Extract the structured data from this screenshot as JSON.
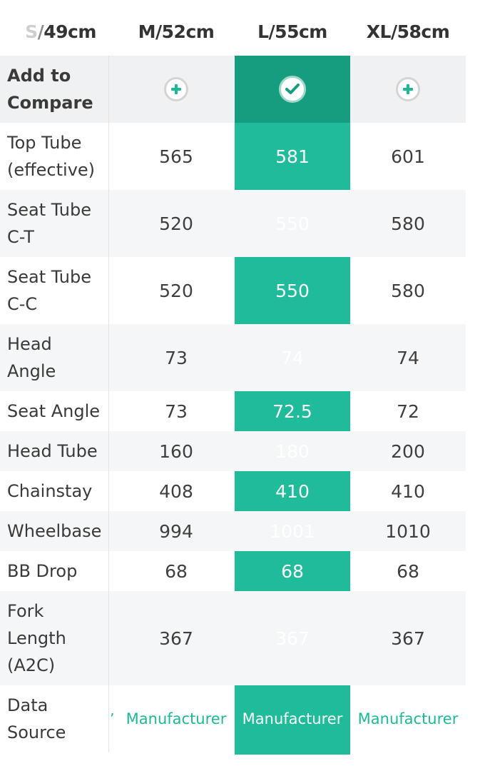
{
  "sizes": {
    "partial_prefix_light": "S",
    "partial_prefix_mid": "/",
    "partial_rest": "49cm",
    "m": "M/52cm",
    "l": "L/55cm",
    "xl": "XL/58cm"
  },
  "compare_label": [
    "Add to",
    "Compare"
  ],
  "compare_states": [
    "add",
    "selected",
    "add"
  ],
  "rows": [
    {
      "label": [
        "Top Tube",
        "(effective)"
      ],
      "values": [
        "565",
        "581",
        "601"
      ]
    },
    {
      "label": [
        "Seat Tube",
        "C-T"
      ],
      "values": [
        "520",
        "550",
        "580"
      ]
    },
    {
      "label": [
        "Seat Tube",
        "C-C"
      ],
      "values": [
        "520",
        "550",
        "580"
      ]
    },
    {
      "label": [
        "Head",
        "Angle"
      ],
      "values": [
        "73",
        "74",
        "74"
      ]
    },
    {
      "label": [
        "Seat Angle"
      ],
      "values": [
        "73",
        "72.5",
        "72"
      ]
    },
    {
      "label": [
        "Head Tube"
      ],
      "values": [
        "160",
        "180",
        "200"
      ]
    },
    {
      "label": [
        "Chainstay"
      ],
      "values": [
        "408",
        "410",
        "410"
      ]
    },
    {
      "label": [
        "Wheelbase"
      ],
      "values": [
        "994",
        "1001",
        "1010"
      ]
    },
    {
      "label": [
        "BB Drop"
      ],
      "values": [
        "68",
        "68",
        "68"
      ]
    },
    {
      "label": [
        "Fork",
        "Length",
        "(A2C)"
      ],
      "values": [
        "367",
        "367",
        "367"
      ]
    },
    {
      "label": [
        "Data",
        "Source"
      ],
      "values": [
        "Manufacturer",
        "Manufacturer",
        "Manufacturer"
      ]
    }
  ],
  "colors": {
    "accent": "#1fbb9a",
    "accent_dark": "#169c7e",
    "link": "#1fb896"
  },
  "icons": {
    "add": "plus-circle-icon",
    "selected": "check-circle-icon"
  }
}
